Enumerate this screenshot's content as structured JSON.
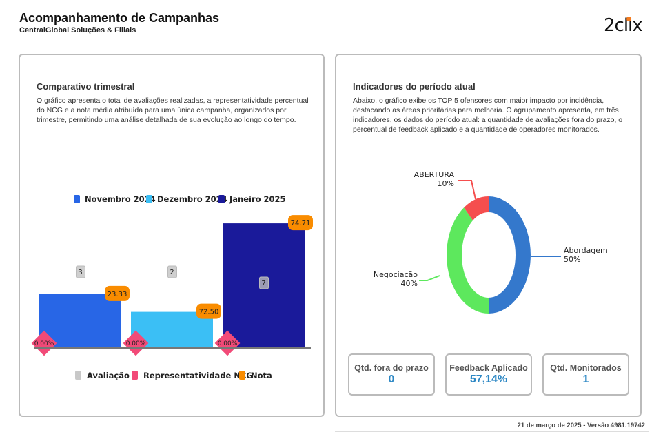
{
  "header": {
    "title": "Acompanhamento de Campanhas",
    "subtitle": "CentralGlobal Soluções & Filiais",
    "logo": "2clix"
  },
  "left_panel": {
    "title": "Comparativo trimestral",
    "description": "O gráfico apresenta o total de avaliações realizadas, a representatividade percentual do NCG e a nota média atribuída para uma única campanha, organizados por trimestre, permitindo uma análise detalhada de sua evolução ao longo do tempo."
  },
  "right_panel": {
    "title": "Indicadores do período atual",
    "description": "Abaixo, o gráfico exibe os TOP 5 ofensores com maior impacto por incidência, destacando as áreas prioritárias para melhoria. O agrupamento apresenta, em três indicadores, os dados do período atual: a quantidade de avaliações fora do prazo, o percentual de feedback aplicado e a quantidade de operadores monitorados."
  },
  "chart_data": [
    {
      "type": "bar",
      "title": "Comparativo trimestral",
      "categories": [
        "Novembro 2024",
        "Dezembro 2024",
        "Janeiro 2025"
      ],
      "colors": [
        "#2866e6",
        "#3bbff5",
        "#1a1a9a"
      ],
      "series": [
        {
          "name": "Avaliação",
          "values": [
            3,
            2,
            7
          ],
          "labels": [
            "3",
            "2",
            "7"
          ],
          "color": "#c8c8c8"
        },
        {
          "name": "Representatividade NCG",
          "values": [
            0,
            0,
            0
          ],
          "labels": [
            "0.00%",
            "0.00%",
            "0.00%"
          ],
          "color": "#f24a78"
        },
        {
          "name": "Nota",
          "values": [
            23.33,
            72.5,
            74.71
          ],
          "labels": [
            "23.33",
            "72.50",
            "74.71"
          ],
          "color": "#f98c00"
        }
      ],
      "legend_top": [
        "Novembro 2024",
        "Dezembro 2024",
        "Janeiro 2025"
      ],
      "legend_bottom": [
        "Avaliação",
        "Representatividade NCG",
        "Nota"
      ]
    },
    {
      "type": "pie",
      "subtype": "donut",
      "slices": [
        {
          "label": "Abordagem",
          "value": 50,
          "pct": "50%",
          "color": "#3478cc"
        },
        {
          "label": "Negociação",
          "value": 40,
          "pct": "40%",
          "color": "#5de85d"
        },
        {
          "label": "ABERTURA",
          "value": 10,
          "pct": "10%",
          "color": "#f54e4e"
        }
      ]
    }
  ],
  "kpis": [
    {
      "label": "Qtd. fora do prazo",
      "value": "0"
    },
    {
      "label": "Feedback Aplicado",
      "value": "57,14%"
    },
    {
      "label": "Qtd. Monitorados",
      "value": "1"
    }
  ],
  "footer": "21 de março de 2025 - Versão 4981.19742"
}
